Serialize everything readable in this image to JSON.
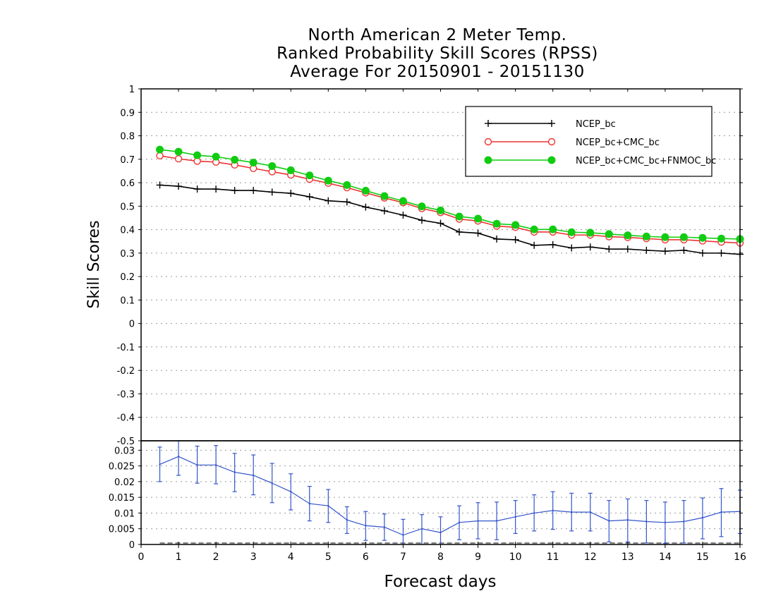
{
  "chart_data": [
    {
      "type": "line",
      "title": [
        "North American 2 Meter Temp.",
        "Ranked Probability Skill Scores (RPSS)",
        "Average For 20150901 - 20151130"
      ],
      "ylabel": "Skill Scores",
      "xlabel": "",
      "xlim": [
        0,
        16
      ],
      "ylim": [
        -0.5,
        1
      ],
      "yticks": [
        "1",
        "0.9",
        "0.8",
        "0.7",
        "0.6",
        "0.5",
        "0.4",
        "0.3",
        "0.2",
        "0.1",
        "0",
        "-0.1",
        "-0.2",
        "-0.3",
        "-0.4"
      ],
      "grid": true,
      "legend_position": "top-right",
      "x": [
        0.5,
        1,
        1.5,
        2,
        2.5,
        3,
        3.5,
        4,
        4.5,
        5,
        5.5,
        6,
        6.5,
        7,
        7.5,
        8,
        8.5,
        9,
        9.5,
        10,
        10.5,
        11,
        11.5,
        12,
        12.5,
        13,
        13.5,
        14,
        14.5,
        15,
        15.5,
        16
      ],
      "series": [
        {
          "name": "NCEP_bc",
          "color": "#000000",
          "marker": "plus",
          "values": [
            0.59,
            0.585,
            0.573,
            0.573,
            0.567,
            0.567,
            0.56,
            0.555,
            0.54,
            0.523,
            0.518,
            0.496,
            0.48,
            0.462,
            0.44,
            0.427,
            0.39,
            0.385,
            0.36,
            0.357,
            0.333,
            0.336,
            0.322,
            0.326,
            0.317,
            0.317,
            0.312,
            0.308,
            0.312,
            0.3,
            0.3,
            0.295
          ]
        },
        {
          "name": "NCEP_bc+CMC_bc",
          "color": "#ee3333",
          "marker": "open-circle",
          "values": [
            0.715,
            0.702,
            0.692,
            0.688,
            0.676,
            0.661,
            0.647,
            0.633,
            0.615,
            0.598,
            0.579,
            0.557,
            0.535,
            0.515,
            0.49,
            0.473,
            0.445,
            0.437,
            0.415,
            0.41,
            0.39,
            0.39,
            0.377,
            0.377,
            0.37,
            0.367,
            0.362,
            0.357,
            0.357,
            0.352,
            0.347,
            0.343
          ]
        },
        {
          "name": "NCEP_bc+CMC_bc+FNMOC_bc",
          "color": "#11cc11",
          "marker": "filled-circle",
          "values": [
            0.741,
            0.732,
            0.717,
            0.711,
            0.698,
            0.686,
            0.671,
            0.653,
            0.631,
            0.609,
            0.59,
            0.566,
            0.543,
            0.522,
            0.499,
            0.482,
            0.456,
            0.447,
            0.425,
            0.42,
            0.401,
            0.401,
            0.389,
            0.387,
            0.381,
            0.376,
            0.371,
            0.368,
            0.368,
            0.365,
            0.362,
            0.36
          ]
        }
      ]
    },
    {
      "type": "line",
      "xlabel": "Forecast days",
      "xlim": [
        0,
        16
      ],
      "ylim": [
        0,
        0.033
      ],
      "xticks": [
        "0",
        "1",
        "2",
        "3",
        "4",
        "5",
        "6",
        "7",
        "8",
        "9",
        "10",
        "11",
        "12",
        "13",
        "14",
        "15",
        "16"
      ],
      "yticks": [
        "0.03",
        "0.025",
        "0.02",
        "0.015",
        "0.01",
        "0.005",
        "0"
      ],
      "grid": true,
      "series": [
        {
          "color": "#3355cc",
          "errorbars": true,
          "x": [
            0.5,
            1,
            1.5,
            2,
            2.5,
            3,
            3.5,
            4,
            4.5,
            5,
            5.5,
            6,
            6.5,
            7,
            7.5,
            8,
            8.5,
            9,
            9.5,
            10,
            10.5,
            11,
            11.5,
            12,
            12.5,
            13,
            13.5,
            14,
            14.5,
            15,
            15.5,
            16
          ],
          "values": [
            0.0255,
            0.028,
            0.0253,
            0.0253,
            0.023,
            0.022,
            0.0195,
            0.0168,
            0.013,
            0.0123,
            0.0078,
            0.006,
            0.0055,
            0.003,
            0.005,
            0.0038,
            0.007,
            0.0075,
            0.0075,
            0.0088,
            0.01,
            0.0108,
            0.0103,
            0.0103,
            0.0075,
            0.0078,
            0.0073,
            0.007,
            0.0073,
            0.0085,
            0.0103,
            0.0105
          ],
          "lower": [
            0.02,
            0.022,
            0.0195,
            0.0193,
            0.0168,
            0.0158,
            0.0133,
            0.011,
            0.0075,
            0.007,
            0.0035,
            0.0013,
            0.0013,
            0,
            0,
            0,
            0.0015,
            0.0018,
            0.0015,
            0.0035,
            0.0043,
            0.0048,
            0.0043,
            0.0043,
            0.0008,
            0.0008,
            0.0005,
            0.0003,
            0.0005,
            0.0018,
            0.0025,
            0.0035
          ],
          "upper": [
            0.031,
            0.0335,
            0.0313,
            0.0315,
            0.029,
            0.0285,
            0.0258,
            0.0225,
            0.0185,
            0.0175,
            0.012,
            0.0105,
            0.0097,
            0.008,
            0.0095,
            0.0088,
            0.0123,
            0.0133,
            0.0135,
            0.014,
            0.0158,
            0.0168,
            0.0163,
            0.0163,
            0.014,
            0.0145,
            0.014,
            0.0135,
            0.014,
            0.0148,
            0.0178,
            0.0173
          ]
        }
      ]
    }
  ]
}
